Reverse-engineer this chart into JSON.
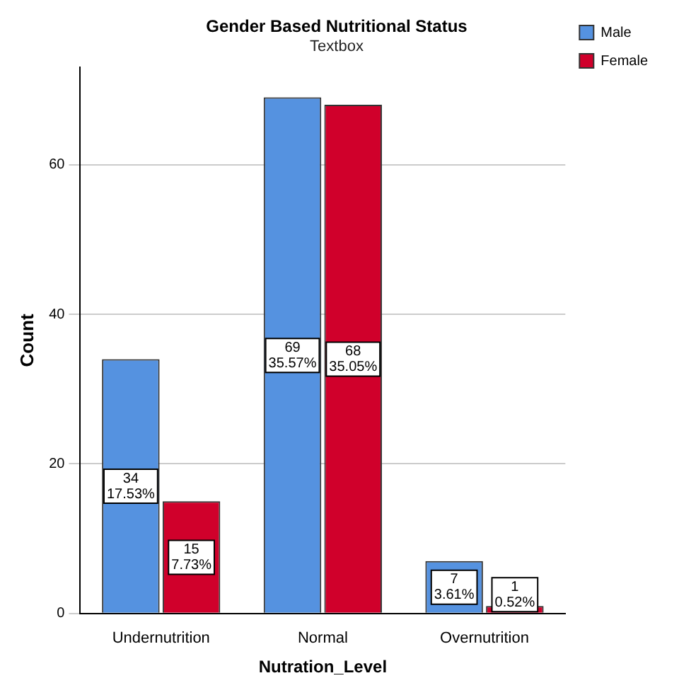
{
  "chart_data": {
    "type": "bar",
    "title": "Gender Based Nutritional Status",
    "subtitle": "Textbox",
    "xlabel": "Nutration_Level",
    "ylabel": "Count",
    "categories": [
      "Undernutrition",
      "Normal",
      "Overnutrition"
    ],
    "series": [
      {
        "name": "Male",
        "color": "#5592e0",
        "values": [
          34,
          69,
          7
        ],
        "value_labels": [
          "34\n17.53%",
          "69\n35.57%",
          "7\n3.61%"
        ]
      },
      {
        "name": "Female",
        "color": "#d0002b",
        "values": [
          15,
          68,
          1
        ],
        "value_labels": [
          "15\n7.73%",
          "68\n35.05%",
          "1\n0.52%"
        ]
      }
    ],
    "ylim": [
      0,
      73
    ],
    "yticks": [
      0,
      20,
      40,
      60
    ],
    "grid": "y",
    "legend": "top right"
  }
}
